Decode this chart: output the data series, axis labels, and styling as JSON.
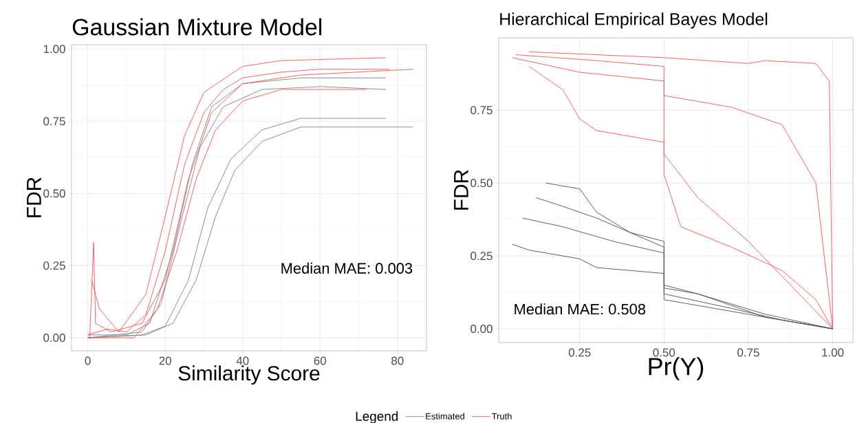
{
  "chart_data": [
    {
      "type": "line",
      "title": "Gaussian Mixture Model",
      "xlabel": "Similarity Score",
      "ylabel": "FDR",
      "legend_title": "Legend",
      "legend": "bottom",
      "grid": true,
      "marker": "none",
      "line_style": "solid",
      "xlim": [
        -4.2,
        87.5
      ],
      "ylim": [
        -0.045,
        1.015
      ],
      "xticks": [
        0,
        20,
        40,
        60,
        80
      ],
      "yticks": [
        {
          "value": 0,
          "label": "0.00"
        },
        {
          "value": 0.25,
          "label": "0.25"
        },
        {
          "value": 0.5,
          "label": "0.50"
        },
        {
          "value": 0.75,
          "label": "0.75"
        },
        {
          "value": 1,
          "label": "1.00"
        }
      ],
      "annotations": [
        "Median MAE: 0.003"
      ],
      "series": [
        {
          "name": "Estimated",
          "color": "#7f7f7f",
          "x": [
            0,
            10,
            16,
            22,
            27,
            32,
            40,
            55,
            77
          ],
          "values": [
            0.01,
            0.01,
            0.05,
            0.3,
            0.6,
            0.8,
            0.88,
            0.9,
            0.9
          ]
        },
        {
          "color": "#7f7f7f",
          "x": [
            0,
            15,
            22,
            28,
            33,
            38,
            45,
            55,
            84
          ],
          "values": [
            0,
            0.01,
            0.05,
            0.2,
            0.42,
            0.58,
            0.68,
            0.73,
            0.73
          ]
        },
        {
          "color": "#7f7f7f",
          "x": [
            0,
            14,
            20,
            26,
            31,
            37,
            45,
            55,
            77
          ],
          "values": [
            0,
            0.01,
            0.04,
            0.2,
            0.45,
            0.62,
            0.72,
            0.76,
            0.76
          ]
        },
        {
          "color": "#7f7f7f",
          "x": [
            0,
            14,
            19,
            24,
            29,
            35,
            45,
            60,
            77
          ],
          "values": [
            0,
            0.02,
            0.12,
            0.4,
            0.66,
            0.8,
            0.86,
            0.87,
            0.86
          ]
        },
        {
          "name": "Truth",
          "color": "#ff4d4d",
          "x": [
            0,
            5,
            10,
            15,
            20,
            25,
            30,
            35,
            40,
            50,
            60,
            78
          ],
          "values": [
            0.01,
            0.03,
            0.02,
            0.08,
            0.3,
            0.6,
            0.78,
            0.86,
            0.9,
            0.92,
            0.93,
            0.93
          ]
        },
        {
          "color": "#ff4d4d",
          "x": [
            1,
            3,
            8,
            15,
            20,
            25,
            30,
            40,
            50,
            77
          ],
          "values": [
            0.2,
            0.1,
            0.02,
            0.15,
            0.42,
            0.7,
            0.85,
            0.94,
            0.96,
            0.97
          ]
        },
        {
          "color": "#ff4d4d",
          "x": [
            0,
            12,
            18,
            23,
            28,
            33,
            40,
            50,
            72
          ],
          "values": [
            0,
            0,
            0.1,
            0.3,
            0.55,
            0.72,
            0.82,
            0.86,
            0.86
          ]
        },
        {
          "color": "#ff4d4d",
          "x": [
            0.5,
            1.5,
            2,
            6,
            14,
            20,
            26,
            32,
            40,
            55,
            84
          ],
          "values": [
            0,
            0.33,
            0.05,
            0.02,
            0.05,
            0.2,
            0.55,
            0.78,
            0.88,
            0.91,
            0.93
          ]
        }
      ]
    },
    {
      "type": "line",
      "title": "Hierarchical Empirical Bayes Model",
      "xlabel": "Pr(Y)",
      "ylabel": "FDR",
      "grid": true,
      "marker": "none",
      "line_style": "solid",
      "xlim": [
        0.01,
        1.06
      ],
      "ylim": [
        -0.047,
        0.998
      ],
      "xticks": [
        {
          "value": 0.25,
          "label": "0.25"
        },
        {
          "value": 0.5,
          "label": "0.50"
        },
        {
          "value": 0.75,
          "label": "0.75"
        },
        {
          "value": 1,
          "label": "1.00"
        }
      ],
      "yticks": [
        {
          "value": 0,
          "label": "0.00"
        },
        {
          "value": 0.25,
          "label": "0.25"
        },
        {
          "value": 0.5,
          "label": "0.50"
        },
        {
          "value": 0.75,
          "label": "0.75"
        }
      ],
      "annotations": [
        "Median MAE: 0.508"
      ],
      "series": [
        {
          "color": "#4d4d4d",
          "x": [
            0.15,
            0.25,
            0.3,
            0.4,
            0.5,
            0.5,
            0.6,
            0.8,
            1
          ],
          "values": [
            0.5,
            0.48,
            0.4,
            0.33,
            0.3,
            0.15,
            0.12,
            0.05,
            0
          ]
        },
        {
          "color": "#4d4d4d",
          "x": [
            0.08,
            0.2,
            0.35,
            0.5,
            0.5,
            0.7,
            0.85,
            1
          ],
          "values": [
            0.38,
            0.35,
            0.3,
            0.26,
            0.12,
            0.07,
            0.03,
            0
          ]
        },
        {
          "color": "#4d4d4d",
          "x": [
            0.05,
            0.1,
            0.25,
            0.3,
            0.5,
            0.5,
            0.75,
            1
          ],
          "values": [
            0.29,
            0.27,
            0.24,
            0.21,
            0.19,
            0.1,
            0.05,
            0
          ]
        },
        {
          "color": "#4d4d4d",
          "x": [
            0.12,
            0.2,
            0.3,
            0.5,
            0.5,
            0.6,
            0.8,
            1
          ],
          "values": [
            0.45,
            0.42,
            0.38,
            0.28,
            0.14,
            0.12,
            0.04,
            0
          ]
        },
        {
          "color": "#ff4d4d",
          "x": [
            0.05,
            0.25,
            0.5,
            0.5,
            0.6,
            0.75,
            0.9,
            1
          ],
          "values": [
            0.93,
            0.88,
            0.85,
            0.6,
            0.45,
            0.3,
            0.12,
            0
          ]
        },
        {
          "color": "#ff4d4d",
          "x": [
            0.06,
            0.3,
            0.5,
            0.5,
            0.7,
            0.85,
            0.95,
            1
          ],
          "values": [
            0.94,
            0.92,
            0.9,
            0.8,
            0.76,
            0.7,
            0.5,
            0
          ]
        },
        {
          "color": "#ff4d4d",
          "x": [
            0.1,
            0.5,
            0.75,
            0.8,
            0.95,
            0.99,
            1
          ],
          "values": [
            0.95,
            0.93,
            0.91,
            0.92,
            0.91,
            0.85,
            0
          ]
        },
        {
          "color": "#ff4d4d",
          "x": [
            0.1,
            0.2,
            0.25,
            0.3,
            0.5,
            0.5,
            0.55,
            0.7,
            0.85,
            0.95,
            1
          ],
          "values": [
            0.9,
            0.82,
            0.72,
            0.68,
            0.64,
            0.53,
            0.35,
            0.28,
            0.2,
            0.1,
            0
          ]
        }
      ]
    }
  ]
}
